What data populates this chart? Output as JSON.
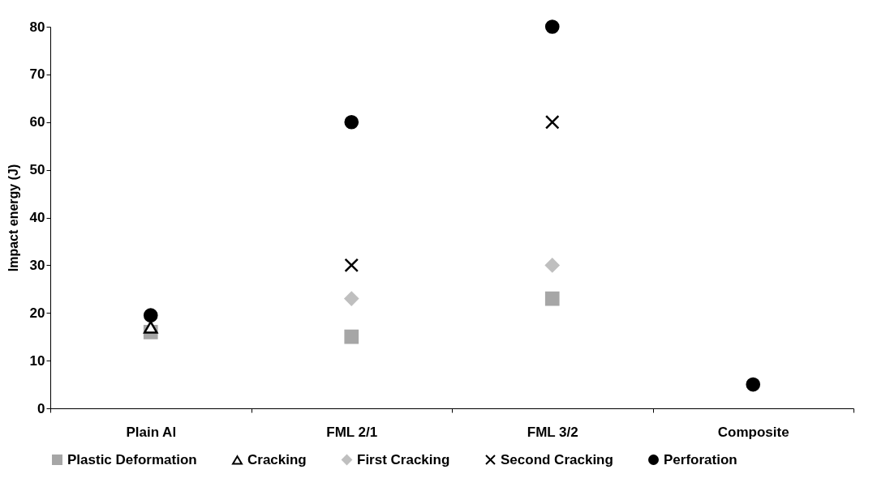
{
  "chart_data": {
    "type": "scatter",
    "ylabel": "Impact energy (J)",
    "categories": [
      "Plain Al",
      "FML 2/1",
      "FML 3/2",
      "Composite"
    ],
    "series": [
      {
        "name": "Plastic Deformation",
        "color": "#a6a6a6",
        "marker": "square",
        "values": [
          16,
          15,
          23,
          null
        ]
      },
      {
        "name": "Cracking",
        "color": "#000000",
        "marker": "triangle",
        "values": [
          17,
          null,
          null,
          null
        ]
      },
      {
        "name": "First Cracking",
        "color": "#bfbfbf",
        "marker": "diamond",
        "values": [
          null,
          23,
          30,
          null
        ]
      },
      {
        "name": "Second Cracking",
        "color": "#000000",
        "marker": "cross",
        "values": [
          null,
          30,
          60,
          null
        ]
      },
      {
        "name": "Perforation",
        "color": "#000000",
        "marker": "circle",
        "values": [
          19.5,
          60,
          80,
          5
        ]
      }
    ],
    "ylim": [
      0,
      80
    ],
    "yticks": [
      0,
      10,
      20,
      30,
      40,
      50,
      60,
      70,
      80
    ],
    "grid": false,
    "legend": "bottom"
  }
}
